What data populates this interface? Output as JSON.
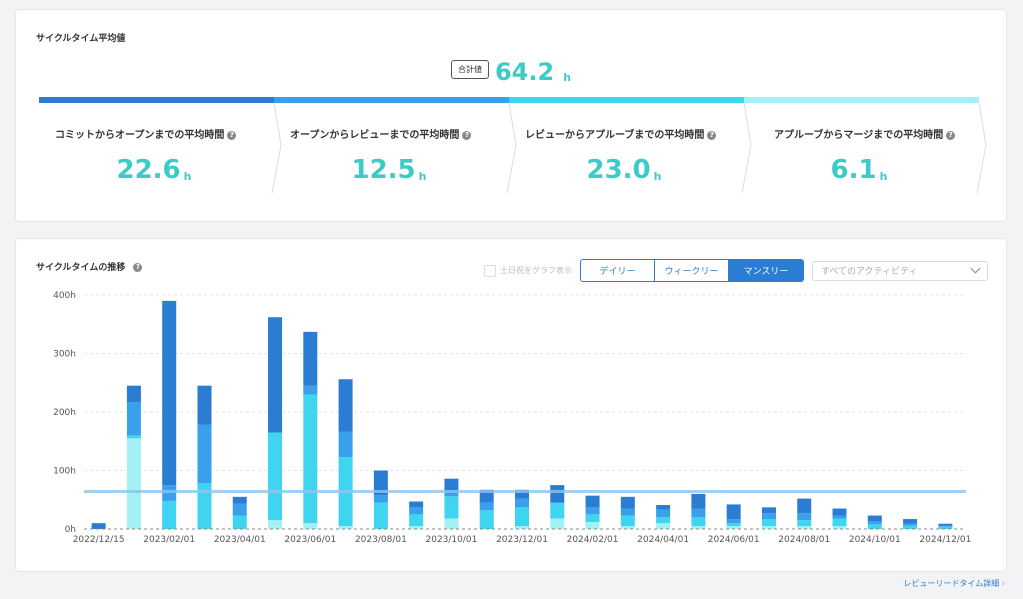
{
  "summary": {
    "title": "サイクルタイム平均値",
    "total_badge": "合計値",
    "total_value": "64.2",
    "unit": "h",
    "stages": [
      {
        "label": "コミットからオープンまでの平均時間",
        "value": "22.6",
        "color": "#2b7cd3"
      },
      {
        "label": "オープンからレビューまでの平均時間",
        "value": "12.5",
        "color": "#3aa0eb"
      },
      {
        "label": "レビューからアプルーブまでの平均時間",
        "value": "23.0",
        "color": "#3fd4f0"
      },
      {
        "label": "アプルーブからマージまでの平均時間",
        "value": "6.1",
        "color": "#a3f0f5"
      }
    ],
    "help_icon": "?"
  },
  "trend": {
    "title": "サイクルタイムの推移",
    "help_icon": "?",
    "weekend_checkbox_label": "土日祝をグラフ表示",
    "view_options": [
      "デイリー",
      "ウィークリー",
      "マンスリー"
    ],
    "selected_view": "マンスリー",
    "activity_select": "すべてのアクティビティ"
  },
  "footer_link": "レビューリードタイム詳細",
  "chart_data": {
    "type": "bar",
    "stacked": true,
    "y_ticks": [
      "0h",
      "100h",
      "200h",
      "300h",
      "400h"
    ],
    "ylim": [
      0,
      400
    ],
    "x_tick_labels": [
      "2022/12/15",
      "2023/02/01",
      "2023/04/01",
      "2023/06/01",
      "2023/08/01",
      "2023/10/01",
      "2023/12/01",
      "2024/02/01",
      "2024/04/01",
      "2024/06/01",
      "2024/08/01",
      "2024/10/01",
      "2024/12/01"
    ],
    "average_line": 64.2,
    "colors": [
      "#a3f0f5",
      "#3fd4f0",
      "#3aa0eb",
      "#2b7cd3"
    ],
    "bars": [
      [
        0,
        0,
        0,
        10
      ],
      [
        155,
        5,
        57,
        28
      ],
      [
        0,
        48,
        27,
        315
      ],
      [
        0,
        78,
        100,
        67
      ],
      [
        0,
        23,
        20,
        12
      ],
      [
        15,
        150,
        0,
        197
      ],
      [
        10,
        220,
        15,
        92
      ],
      [
        5,
        118,
        43,
        90
      ],
      [
        0,
        45,
        13,
        42
      ],
      [
        5,
        20,
        12,
        10
      ],
      [
        18,
        38,
        10,
        20
      ],
      [
        0,
        32,
        13,
        22
      ],
      [
        5,
        32,
        15,
        15
      ],
      [
        18,
        27,
        0,
        30
      ],
      [
        12,
        13,
        12,
        20
      ],
      [
        5,
        18,
        12,
        20
      ],
      [
        10,
        10,
        13,
        8
      ],
      [
        5,
        15,
        15,
        25
      ],
      [
        5,
        5,
        7,
        25
      ],
      [
        5,
        12,
        10,
        10
      ],
      [
        5,
        10,
        12,
        25
      ],
      [
        5,
        13,
        5,
        12
      ],
      [
        0,
        8,
        5,
        10
      ],
      [
        0,
        6,
        3,
        8
      ],
      [
        0,
        4,
        2,
        3
      ]
    ]
  }
}
